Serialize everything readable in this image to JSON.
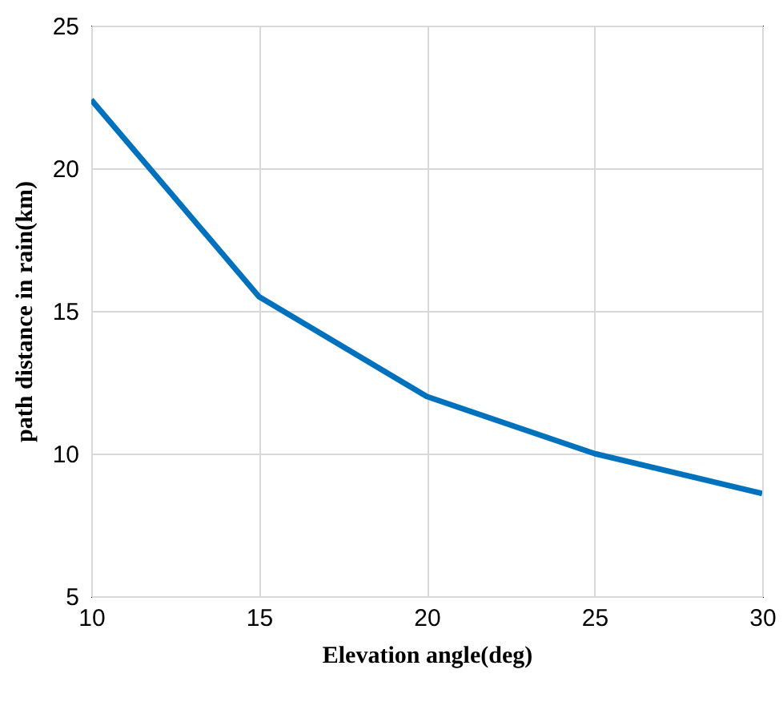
{
  "chart_data": {
    "type": "line",
    "xlabel": "Elevation angle(deg)",
    "ylabel": "path distance in rain(km)",
    "x": [
      10,
      15,
      20,
      25,
      30
    ],
    "series": [
      {
        "color": "#0072bd",
        "values": [
          22.4,
          15.5,
          12.0,
          10.0,
          8.6
        ]
      }
    ],
    "xlim": [
      10,
      30
    ],
    "xticks": [
      10,
      15,
      20,
      25,
      30
    ],
    "ylim": [
      5,
      25
    ],
    "yticks": [
      5,
      10,
      15,
      20,
      25
    ],
    "grid": true,
    "marker": "none",
    "line_style": "solid"
  }
}
